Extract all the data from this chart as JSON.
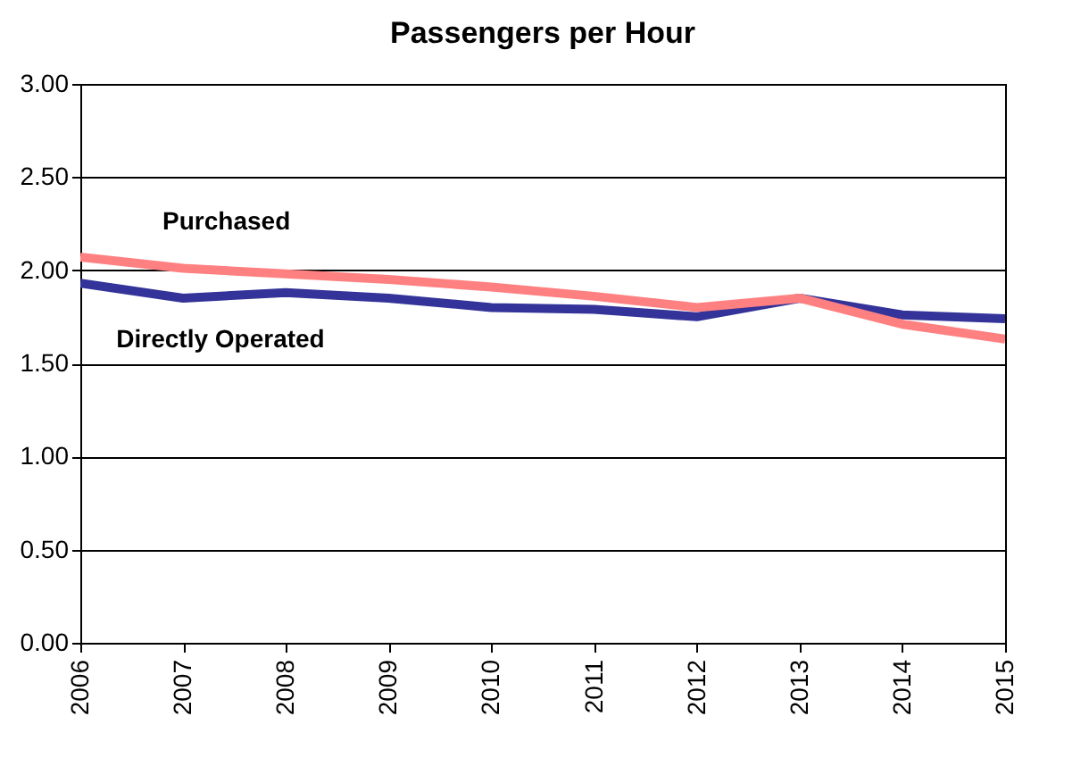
{
  "chart_data": {
    "type": "line",
    "title": "Passengers per Hour",
    "categories": [
      "2006",
      "2007",
      "2008",
      "2009",
      "2010",
      "2011",
      "2012",
      "2013",
      "2014",
      "2015"
    ],
    "series": [
      {
        "name": "Directly Operated",
        "color": "#333399",
        "values": [
          1.93,
          1.85,
          1.88,
          1.85,
          1.8,
          1.79,
          1.75,
          1.85,
          1.76,
          1.74
        ]
      },
      {
        "name": "Purchased",
        "color": "#ff8080",
        "values": [
          2.07,
          2.01,
          1.98,
          1.95,
          1.91,
          1.86,
          1.8,
          1.85,
          1.71,
          1.63
        ]
      }
    ],
    "ylim": [
      0,
      3
    ],
    "yticks": [
      {
        "value": 0,
        "label": "0.00"
      },
      {
        "value": 0.5,
        "label": "0.50"
      },
      {
        "value": 1,
        "label": "1.00"
      },
      {
        "value": 1.5,
        "label": "1.50"
      },
      {
        "value": 2,
        "label": "2.00"
      },
      {
        "value": 2.5,
        "label": "2.50"
      },
      {
        "value": 3,
        "label": "3.00"
      }
    ],
    "grid": "y",
    "legend": false,
    "marker": "none",
    "line_style": "solid"
  }
}
